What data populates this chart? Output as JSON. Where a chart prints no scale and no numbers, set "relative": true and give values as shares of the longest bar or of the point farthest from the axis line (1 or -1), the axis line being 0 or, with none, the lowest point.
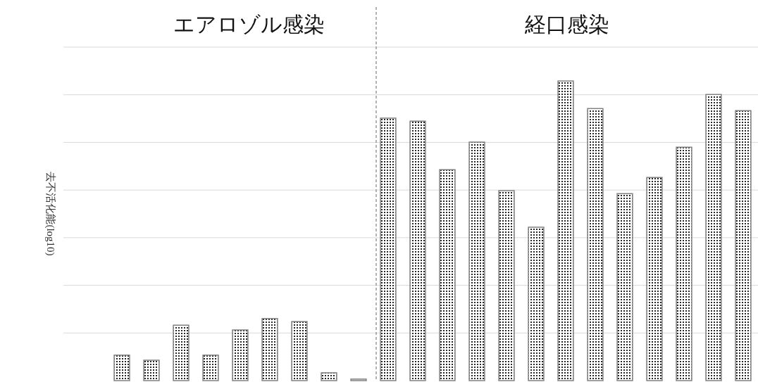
{
  "chart_data": {
    "type": "bar",
    "ylabel": "去不活化能(log10)",
    "categories": [
      null,
      null,
      null,
      null,
      null,
      null,
      null,
      null,
      null,
      null,
      null,
      null,
      null,
      null,
      null,
      null,
      null,
      null,
      null,
      null,
      null,
      null
    ],
    "values": [
      0.085,
      0.068,
      0.185,
      0.085,
      0.169,
      0.207,
      0.197,
      0.026,
      0.005,
      0.876,
      0.866,
      0.704,
      0.796,
      0.634,
      0.512,
      1,
      0.908,
      0.624,
      0.678,
      0.779,
      0.955,
      0.901
    ],
    "color": "#808080",
    "relative": true,
    "grid": "y",
    "annotations": [
      "エアロゾル感染",
      "経口感染"
    ]
  }
}
